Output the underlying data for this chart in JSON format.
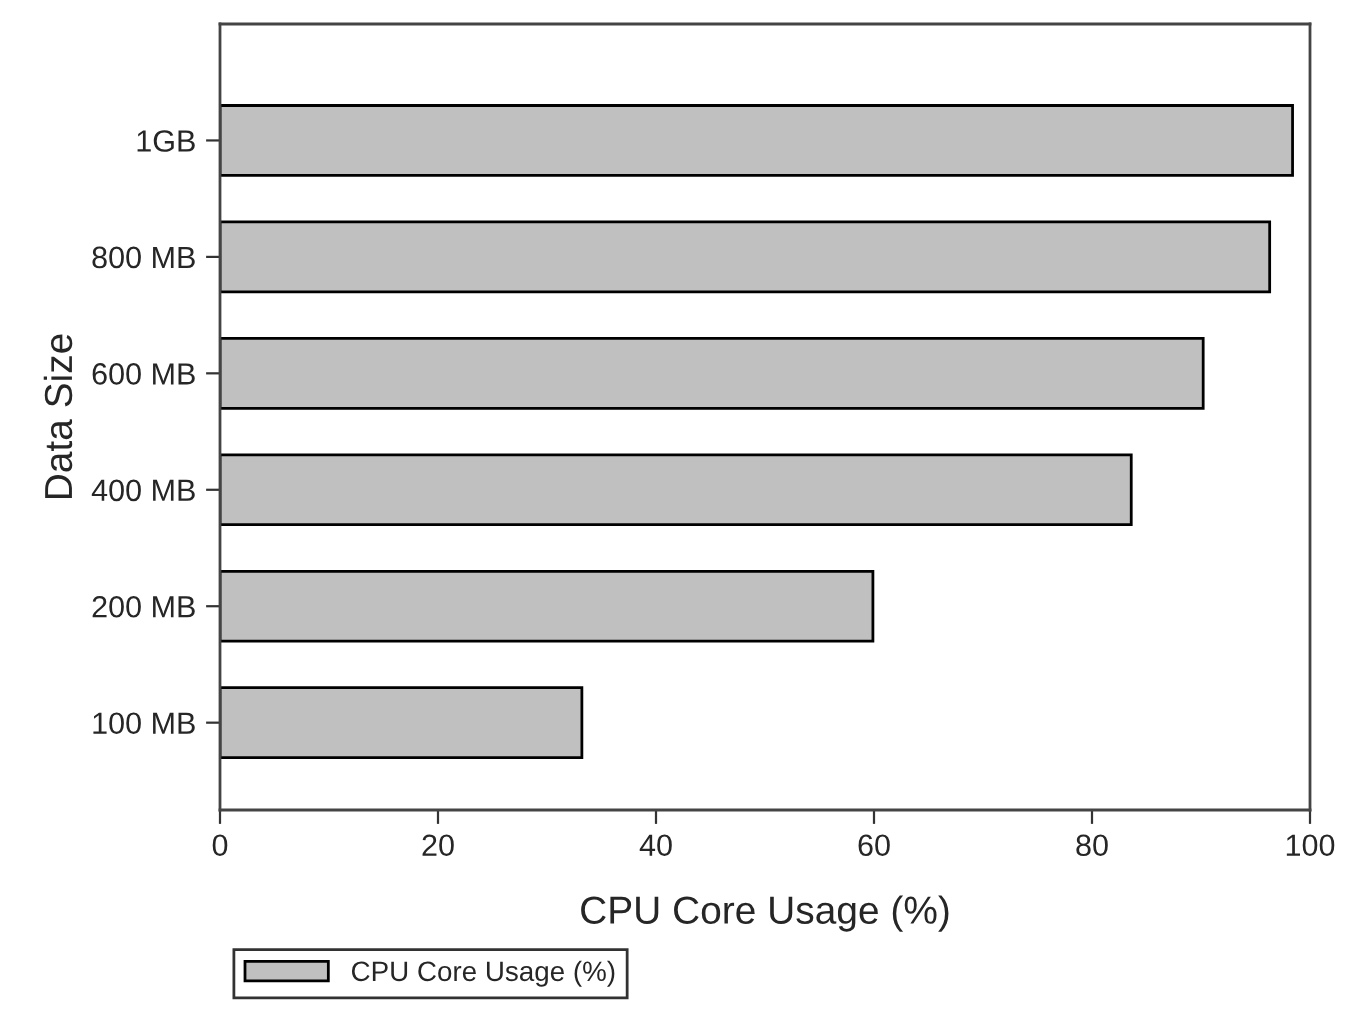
{
  "chart_data": {
    "type": "bar",
    "orientation": "horizontal",
    "xlabel": "CPU Core Usage (%)",
    "ylabel": "Data Size",
    "categories": [
      "1GB",
      "800 MB",
      "600 MB",
      "400 MB",
      "200 MB",
      "100 MB"
    ],
    "series": [
      {
        "name": "CPU Core Usage (%)",
        "color": "#c0c0c0",
        "values": [
          98.4,
          96.3,
          90.2,
          83.6,
          59.9,
          33.2
        ]
      }
    ],
    "xlim": [
      0,
      100
    ],
    "xticks": [
      0,
      20,
      40,
      60,
      80,
      100
    ],
    "grid": false,
    "legend": "bottom left"
  }
}
